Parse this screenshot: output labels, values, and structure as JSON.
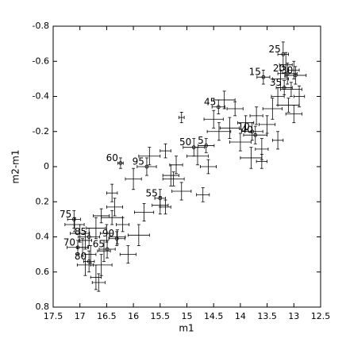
{
  "chart_data": {
    "type": "errorbar-scatter",
    "xlabel": "m1",
    "ylabel": "m2-m1",
    "xlim": [
      17.5,
      12.5
    ],
    "ylim": [
      0.8,
      -0.8
    ],
    "xticks": [
      17.5,
      17,
      16.5,
      16,
      15.5,
      15,
      14.5,
      14,
      13.5,
      13,
      12.5
    ],
    "yticks": [
      -0.8,
      -0.6,
      -0.4,
      -0.2,
      0,
      0.2,
      0.4,
      0.6,
      0.8
    ],
    "color": "#000000",
    "series": [
      {
        "x": [
          14.64,
          13.78,
          13.57,
          13.12,
          13.2,
          12.97,
          13.18,
          13.72,
          14.41,
          14.87,
          15.5,
          16.24,
          16.49,
          17.04,
          17.11,
          16.83,
          16.83,
          16.31,
          15.75,
          16.9,
          16.7,
          16.6,
          16.8,
          16.6,
          16.5,
          16.3,
          16.7,
          16.65,
          17.0,
          16.9,
          16.4,
          16.4,
          16.1,
          15.9,
          16.2,
          15.8,
          16.0,
          15.7,
          15.4,
          15.3,
          15.2,
          15.25,
          15.1,
          14.7,
          15.5,
          15.4,
          15.1,
          14.8,
          14.6,
          14.4,
          14.2,
          14.0,
          13.9,
          13.7,
          13.8,
          13.6,
          13.5,
          13.4,
          13.3,
          13.1,
          13.0,
          12.9,
          13.15,
          13.25,
          13.05,
          13.3,
          14.3,
          14.1,
          14.5,
          13.6,
          13.0,
          16.35,
          16.55,
          17.1,
          16.95
        ],
        "values": [
          -0.12,
          -0.2,
          -0.51,
          -0.53,
          -0.64,
          -0.52,
          -0.45,
          -0.18,
          -0.34,
          -0.11,
          0.18,
          -0.02,
          0.47,
          0.46,
          0.3,
          0.54,
          0.4,
          0.41,
          0.0,
          0.42,
          0.35,
          0.28,
          0.5,
          0.56,
          0.38,
          0.4,
          0.63,
          0.66,
          0.38,
          0.56,
          0.29,
          0.15,
          0.5,
          0.39,
          0.33,
          0.26,
          0.07,
          -0.06,
          -0.09,
          0.05,
          -0.01,
          0.07,
          0.14,
          0.16,
          0.22,
          0.23,
          -0.28,
          -0.06,
          0.0,
          -0.2,
          -0.22,
          -0.14,
          -0.25,
          -0.29,
          -0.05,
          -0.03,
          -0.24,
          -0.33,
          -0.4,
          -0.35,
          -0.3,
          -0.4,
          -0.58,
          -0.5,
          -0.44,
          -0.15,
          -0.38,
          -0.33,
          -0.27,
          -0.1,
          -0.55,
          0.23,
          0.48,
          0.33,
          0.46
        ],
        "xerr": [
          0.15,
          0.2,
          0.12,
          0.18,
          0.1,
          0.2,
          0.15,
          0.22,
          0.12,
          0.2,
          0.1,
          0.05,
          0.15,
          0.2,
          0.12,
          0.1,
          0.2,
          0.15,
          0.18,
          0.12,
          0.18,
          0.15,
          0.1,
          0.2,
          0.12,
          0.15,
          0.1,
          0.12,
          0.18,
          0.15,
          0.2,
          0.1,
          0.15,
          0.2,
          0.12,
          0.18,
          0.15,
          0.2,
          0.1,
          0.15,
          0.12,
          0.2,
          0.18,
          0.12,
          0.15,
          0.1,
          0.05,
          0.2,
          0.15,
          0.22,
          0.18,
          0.2,
          0.15,
          0.12,
          0.2,
          0.1,
          0.15,
          0.18,
          0.12,
          0.2,
          0.15,
          0.1,
          0.12,
          0.15,
          0.2,
          0.1,
          0.2,
          0.15,
          0.18,
          0.12,
          0.1,
          0.15,
          0.12,
          0.18,
          0.1
        ],
        "yerr": [
          0.04,
          0.05,
          0.04,
          0.06,
          0.07,
          0.05,
          0.04,
          0.05,
          0.04,
          0.05,
          0.05,
          0.03,
          0.05,
          0.04,
          0.05,
          0.06,
          0.05,
          0.04,
          0.05,
          0.05,
          0.06,
          0.04,
          0.05,
          0.06,
          0.05,
          0.04,
          0.07,
          0.05,
          0.05,
          0.06,
          0.04,
          0.05,
          0.05,
          0.06,
          0.04,
          0.05,
          0.06,
          0.05,
          0.04,
          0.06,
          0.05,
          0.04,
          0.05,
          0.04,
          0.05,
          0.04,
          0.03,
          0.05,
          0.04,
          0.05,
          0.06,
          0.05,
          0.04,
          0.05,
          0.06,
          0.04,
          0.05,
          0.06,
          0.05,
          0.04,
          0.05,
          0.06,
          0.07,
          0.05,
          0.04,
          0.05,
          0.05,
          0.04,
          0.05,
          0.06,
          0.05,
          0.05,
          0.06,
          0.04,
          0.05
        ],
        "labels": [
          "5",
          "10",
          "15",
          "20",
          "25",
          "30",
          "35",
          "40",
          "45",
          "50",
          "55",
          "60",
          "65",
          "70",
          "75",
          "80",
          "85",
          "90",
          "95",
          null,
          null,
          null,
          null,
          null,
          null,
          null,
          null,
          null,
          null,
          null,
          null,
          null,
          null,
          null,
          null,
          null,
          null,
          null,
          null,
          null,
          null,
          null,
          null,
          null,
          null,
          null,
          null,
          null,
          null,
          null,
          null,
          null,
          null,
          null,
          null,
          null,
          null,
          null,
          null,
          null,
          null,
          null,
          null,
          null,
          null,
          null,
          null,
          null,
          null,
          null,
          null,
          null,
          null,
          null,
          null
        ]
      }
    ]
  }
}
